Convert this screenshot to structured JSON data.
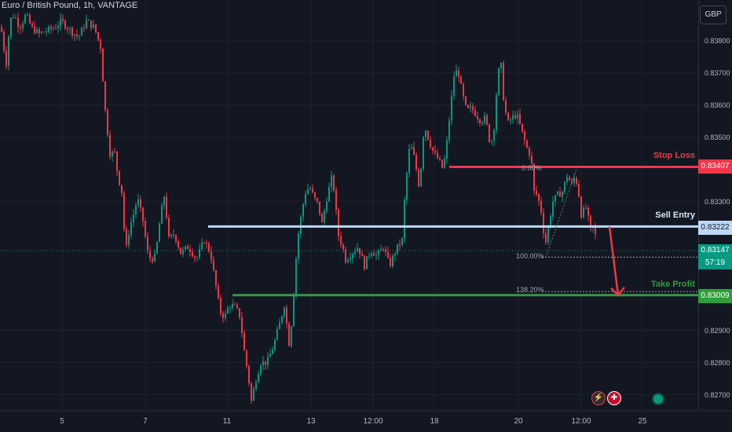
{
  "header": {
    "title": "Euro / British Pound, 1h, VANTAGE",
    "currency": "GBP"
  },
  "colors": {
    "background": "#131722",
    "up": "#089981",
    "down": "#f23645",
    "stop_loss": "#f23645",
    "entry": "#bcd8f5",
    "take_profit": "#2e9e3a",
    "grid": "#1e222d"
  },
  "chart_data": {
    "type": "candlestick",
    "timeframe": "1h",
    "ylim": [
      0.8265,
      0.8393
    ],
    "y_ticks": [
      "0.83800",
      "0.83700",
      "0.83600",
      "0.83500",
      "0.83300",
      "0.82900",
      "0.82800",
      "0.82700"
    ],
    "x_ticks": [
      "5",
      "7",
      "11",
      "13",
      "12:00",
      "18",
      "20",
      "12:00",
      "25"
    ],
    "price_path": [
      [
        0,
        0.8384
      ],
      [
        3,
        0.8382
      ],
      [
        6,
        0.8375
      ],
      [
        9,
        0.8372
      ],
      [
        12,
        0.8386
      ],
      [
        18,
        0.8388
      ],
      [
        25,
        0.8384
      ],
      [
        33,
        0.8388
      ],
      [
        40,
        0.8384
      ],
      [
        50,
        0.8382
      ],
      [
        60,
        0.8383
      ],
      [
        70,
        0.8384
      ],
      [
        78,
        0.8386
      ],
      [
        90,
        0.8383
      ],
      [
        100,
        0.8381
      ],
      [
        110,
        0.8386
      ],
      [
        120,
        0.8384
      ],
      [
        128,
        0.8378
      ],
      [
        134,
        0.8358
      ],
      [
        140,
        0.8345
      ],
      [
        146,
        0.8345
      ],
      [
        150,
        0.8338
      ],
      [
        155,
        0.8333
      ],
      [
        160,
        0.8314
      ],
      [
        165,
        0.8322
      ],
      [
        170,
        0.8326
      ],
      [
        175,
        0.8331
      ],
      [
        182,
        0.8324
      ],
      [
        188,
        0.8314
      ],
      [
        192,
        0.8312
      ],
      [
        198,
        0.8313
      ],
      [
        204,
        0.8325
      ],
      [
        210,
        0.8333
      ],
      [
        214,
        0.8318
      ],
      [
        222,
        0.832
      ],
      [
        230,
        0.8314
      ],
      [
        240,
        0.8316
      ],
      [
        250,
        0.8312
      ],
      [
        260,
        0.8318
      ],
      [
        268,
        0.8314
      ],
      [
        274,
        0.8305
      ],
      [
        280,
        0.8296
      ],
      [
        286,
        0.8294
      ],
      [
        292,
        0.8298
      ],
      [
        300,
        0.8297
      ],
      [
        306,
        0.8294
      ],
      [
        310,
        0.8285
      ],
      [
        316,
        0.8276
      ],
      [
        320,
        0.8268
      ],
      [
        326,
        0.8275
      ],
      [
        332,
        0.828
      ],
      [
        340,
        0.828
      ],
      [
        348,
        0.8285
      ],
      [
        356,
        0.8292
      ],
      [
        362,
        0.8298
      ],
      [
        368,
        0.8286
      ],
      [
        372,
        0.8294
      ],
      [
        376,
        0.831
      ],
      [
        380,
        0.832
      ],
      [
        385,
        0.8328
      ],
      [
        390,
        0.8334
      ],
      [
        395,
        0.8334
      ],
      [
        400,
        0.8331
      ],
      [
        405,
        0.8329
      ],
      [
        410,
        0.8323
      ],
      [
        416,
        0.8331
      ],
      [
        422,
        0.8337
      ],
      [
        426,
        0.8333
      ],
      [
        430,
        0.832
      ],
      [
        436,
        0.8316
      ],
      [
        440,
        0.8312
      ],
      [
        448,
        0.8314
      ],
      [
        456,
        0.8316
      ],
      [
        464,
        0.831
      ],
      [
        472,
        0.8315
      ],
      [
        480,
        0.8313
      ],
      [
        488,
        0.8316
      ],
      [
        496,
        0.831
      ],
      [
        504,
        0.8315
      ],
      [
        512,
        0.8318
      ],
      [
        516,
        0.8334
      ],
      [
        522,
        0.8348
      ],
      [
        528,
        0.8343
      ],
      [
        534,
        0.8334
      ],
      [
        540,
        0.8354
      ],
      [
        546,
        0.8349
      ],
      [
        552,
        0.8345
      ],
      [
        558,
        0.8343
      ],
      [
        564,
        0.834
      ],
      [
        568,
        0.8346
      ],
      [
        574,
        0.836
      ],
      [
        578,
        0.8369
      ],
      [
        583,
        0.8371
      ],
      [
        588,
        0.8364
      ],
      [
        594,
        0.8358
      ],
      [
        600,
        0.8359
      ],
      [
        606,
        0.8357
      ],
      [
        612,
        0.8355
      ],
      [
        618,
        0.8356
      ],
      [
        624,
        0.8348
      ],
      [
        628,
        0.835
      ],
      [
        634,
        0.837
      ],
      [
        638,
        0.8372
      ],
      [
        640,
        0.8364
      ],
      [
        646,
        0.8354
      ],
      [
        652,
        0.8356
      ],
      [
        658,
        0.8357
      ],
      [
        664,
        0.8352
      ],
      [
        670,
        0.8347
      ],
      [
        676,
        0.8344
      ],
      [
        680,
        0.8333
      ],
      [
        684,
        0.8332
      ],
      [
        690,
        0.8326
      ],
      [
        694,
        0.8316
      ],
      [
        698,
        0.8322
      ],
      [
        704,
        0.833
      ],
      [
        710,
        0.8332
      ],
      [
        716,
        0.8333
      ],
      [
        722,
        0.8338
      ],
      [
        728,
        0.8335
      ],
      [
        732,
        0.8338
      ],
      [
        736,
        0.8334
      ],
      [
        740,
        0.8326
      ],
      [
        746,
        0.8328
      ],
      [
        752,
        0.8321
      ],
      [
        756,
        0.8322
      ],
      [
        760,
        0.8317
      ]
    ],
    "levels": {
      "stop_loss": {
        "label": "Stop Loss",
        "price": "0.83407",
        "value": 0.83407
      },
      "sell_entry": {
        "label": "Sell Entry",
        "price": "0.83222",
        "value": 0.83222
      },
      "take_profit": {
        "label": "Take Profit",
        "price": "0.83009",
        "value": 0.83009
      }
    },
    "current": {
      "price": "0.83147",
      "value": 0.83147,
      "countdown": "57:19"
    },
    "fib": {
      "top": "0.00%",
      "bottom": "100.00%",
      "ext": "138.20%"
    }
  }
}
